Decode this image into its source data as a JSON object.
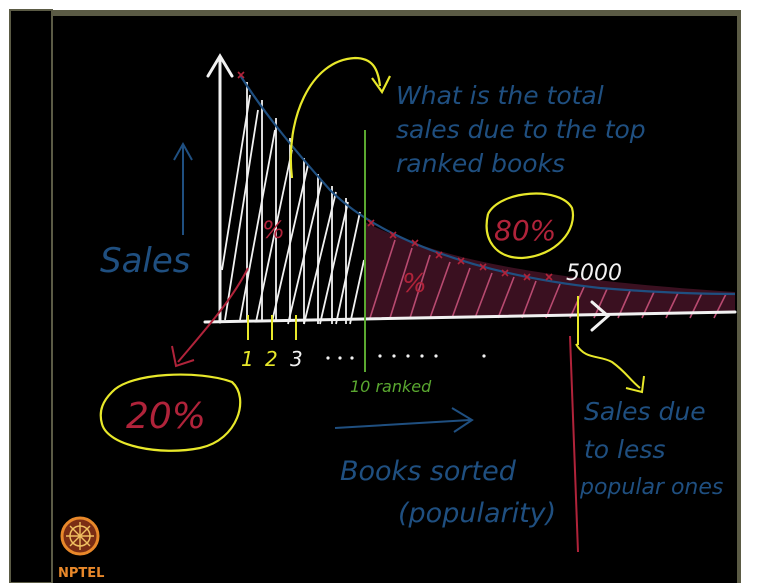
{
  "labels": {
    "question_line1": "What is the total",
    "question_line2": "sales due to the top",
    "question_line3": "ranked books",
    "y_axis": "Sales",
    "pct_top": "20%",
    "pct_tail": "80%",
    "pct_white_region": "%",
    "pct_pink_region": "%",
    "count_5000": "5000",
    "tick_1": "1",
    "tick_2": "2",
    "tick_3": "3",
    "ten_ranked": "10 ranked",
    "x_axis_line1": "Books sorted",
    "x_axis_line2": "(popularity)",
    "tail_line1": "Sales due",
    "tail_line2": "to less",
    "tail_line3": "popular ones"
  },
  "logo": {
    "text": "NPTEL"
  },
  "colors": {
    "background": "#000000",
    "frame_bar": "#5b5b45",
    "annotation_blue": "#1f4f80",
    "highlight_yellow": "#e8e82a",
    "marker_red": "#b0233a",
    "hatch_pink": "#b84a70",
    "chalk_white": "#f2f2f2",
    "divider_green": "#5aa830"
  }
}
